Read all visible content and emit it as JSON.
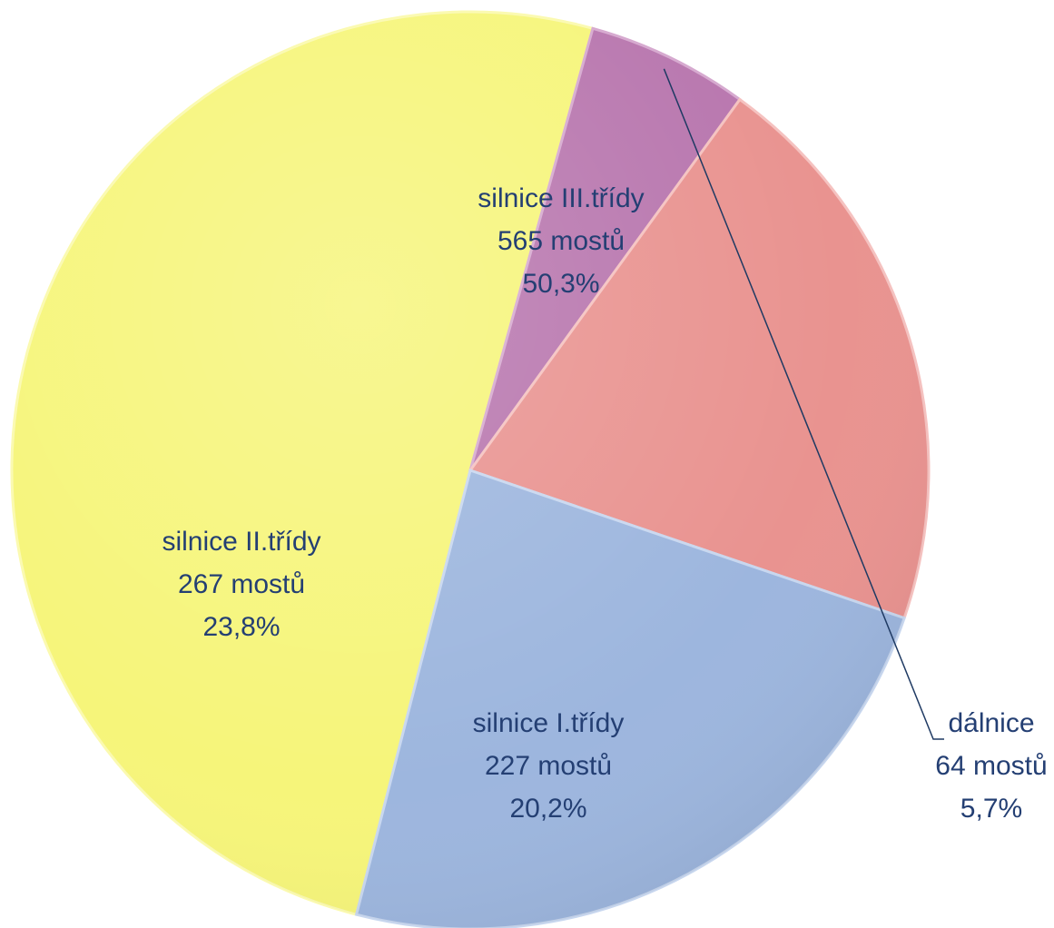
{
  "chart_data": {
    "type": "pie",
    "title": "",
    "slices": [
      {
        "name": "silnice III.třídy",
        "count_label": "565 mostů",
        "value": 565,
        "percent_label": "50,3%",
        "color": "#f6f57a",
        "edge": "#fbfab0"
      },
      {
        "name": "dálnice",
        "count_label": "64 mostů",
        "value": 64,
        "percent_label": "5,7%",
        "color": "#b876ae",
        "edge": "#d6a9cf"
      },
      {
        "name": "silnice I.třídy",
        "count_label": "227 mostů",
        "value": 227,
        "percent_label": "20,2%",
        "color": "#e99390",
        "edge": "#f5c2c0"
      },
      {
        "name": "silnice II.třídy",
        "count_label": "267 mostů",
        "value": 267,
        "percent_label": "23,8%",
        "color": "#9db6de",
        "edge": "#c8d7ef"
      }
    ],
    "label_color": "#243f73",
    "leader_line_color": "#1f3a63"
  }
}
